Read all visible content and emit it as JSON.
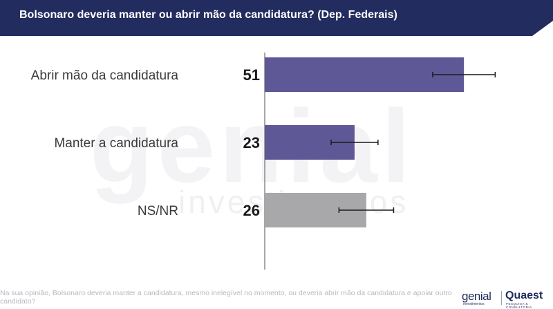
{
  "header": {
    "title": "Bolsonaro deveria manter ou abrir mão da candidatura? (Dep. Federais)"
  },
  "watermark": {
    "brand": "genial",
    "sub": "investimentos"
  },
  "chart_data": {
    "type": "bar",
    "orientation": "horizontal",
    "categories": [
      "Abrir mão da candidatura",
      "Manter a candidatura",
      "NS/NR"
    ],
    "values": [
      51,
      23,
      26
    ],
    "error_low": [
      43,
      17,
      19
    ],
    "error_high": [
      59,
      29,
      33
    ],
    "xlim": [
      0,
      100
    ],
    "colors": [
      "#5e5896",
      "#5e5896",
      "#a8a8aa"
    ],
    "grid": false,
    "legend": "none",
    "title": "Bolsonaro deveria manter ou abrir mão da candidatura? (Dep. Federais)",
    "xlabel": "",
    "ylabel": ""
  },
  "footnote": "Na sua opinião, Bolsonaro deveria manter a candidatura, mesmo inelegível no momento, ou deveria abrir mão da candidatura e apoiar outro candidato?",
  "logos": {
    "genial": "genial",
    "genial_sub": "investimentos",
    "quaest": "Quaest",
    "quaest_sub": "PESQUISA & CONSULTORIA"
  },
  "colors": {
    "header_bg": "#222c5e",
    "bar_primary": "#5e5896",
    "bar_neutral": "#a8a8aa",
    "axis": "#888888"
  }
}
